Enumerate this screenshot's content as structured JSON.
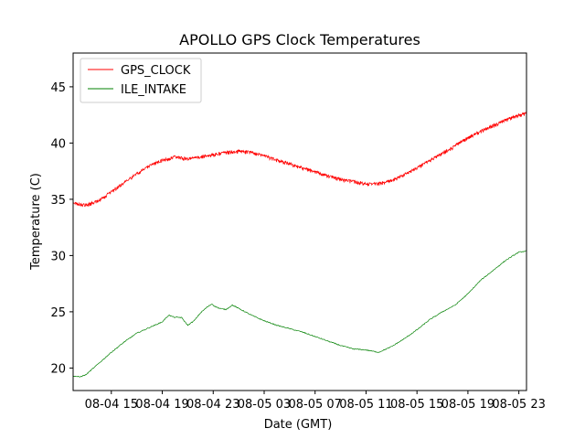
{
  "chart_data": {
    "type": "line",
    "title": "APOLLO GPS Clock Temperatures",
    "xlabel": "Date (GMT)",
    "ylabel": "Temperature (C)",
    "xlim": [
      12.0,
      47.6
    ],
    "ylim": [
      18.0,
      48.0
    ],
    "x_unit": "hours since 08-04 00:00 GMT",
    "x_ticks": [
      {
        "value": 15,
        "label": "08-04 15"
      },
      {
        "value": 19,
        "label": "08-04 19"
      },
      {
        "value": 23,
        "label": "08-04 23"
      },
      {
        "value": 27,
        "label": "08-05 03"
      },
      {
        "value": 31,
        "label": "08-05 07"
      },
      {
        "value": 35,
        "label": "08-05 11"
      },
      {
        "value": 39,
        "label": "08-05 15"
      },
      {
        "value": 43,
        "label": "08-05 19"
      },
      {
        "value": 47,
        "label": "08-05 23"
      }
    ],
    "y_ticks": [
      20,
      25,
      30,
      35,
      40,
      45
    ],
    "legend": {
      "location": "top-left",
      "entries": [
        {
          "label": "GPS_CLOCK",
          "color": "#ff0000"
        },
        {
          "label": "ILE_INTAKE",
          "color": "#008000"
        }
      ]
    },
    "series": [
      {
        "name": "GPS_CLOCK",
        "color": "#ff0000",
        "noise": 0.6,
        "points": [
          [
            12.0,
            34.8
          ],
          [
            13.0,
            34.6
          ],
          [
            14.0,
            35.0
          ],
          [
            15.0,
            35.8
          ],
          [
            16.0,
            36.6
          ],
          [
            17.0,
            37.4
          ],
          [
            18.0,
            38.1
          ],
          [
            19.0,
            38.6
          ],
          [
            20.0,
            38.9
          ],
          [
            21.0,
            38.7
          ],
          [
            22.0,
            38.9
          ],
          [
            23.0,
            39.1
          ],
          [
            24.0,
            39.3
          ],
          [
            25.0,
            39.4
          ],
          [
            26.0,
            39.3
          ],
          [
            27.0,
            39.0
          ],
          [
            28.0,
            38.6
          ],
          [
            29.0,
            38.3
          ],
          [
            30.0,
            37.9
          ],
          [
            31.0,
            37.6
          ],
          [
            32.0,
            37.2
          ],
          [
            33.0,
            36.9
          ],
          [
            34.0,
            36.7
          ],
          [
            35.0,
            36.5
          ],
          [
            36.0,
            36.5
          ],
          [
            37.0,
            36.8
          ],
          [
            38.0,
            37.3
          ],
          [
            39.0,
            37.9
          ],
          [
            40.0,
            38.6
          ],
          [
            41.0,
            39.2
          ],
          [
            42.0,
            39.9
          ],
          [
            43.0,
            40.6
          ],
          [
            44.0,
            41.2
          ],
          [
            45.0,
            41.7
          ],
          [
            46.0,
            42.2
          ],
          [
            47.0,
            42.6
          ],
          [
            47.6,
            42.8
          ]
        ]
      },
      {
        "name": "ILE_INTAKE",
        "color": "#008000",
        "noise": 0.08,
        "points": [
          [
            12.0,
            19.3
          ],
          [
            12.5,
            19.2
          ],
          [
            13.0,
            19.4
          ],
          [
            14.0,
            20.4
          ],
          [
            15.0,
            21.4
          ],
          [
            16.0,
            22.3
          ],
          [
            17.0,
            23.1
          ],
          [
            18.0,
            23.6
          ],
          [
            19.0,
            24.1
          ],
          [
            19.5,
            24.7
          ],
          [
            20.0,
            24.5
          ],
          [
            20.5,
            24.5
          ],
          [
            21.0,
            23.8
          ],
          [
            21.5,
            24.2
          ],
          [
            22.0,
            24.9
          ],
          [
            22.5,
            25.4
          ],
          [
            22.9,
            25.7
          ],
          [
            23.1,
            25.5
          ],
          [
            23.5,
            25.3
          ],
          [
            24.0,
            25.2
          ],
          [
            24.5,
            25.6
          ],
          [
            25.0,
            25.3
          ],
          [
            26.0,
            24.7
          ],
          [
            27.0,
            24.2
          ],
          [
            28.0,
            23.8
          ],
          [
            29.0,
            23.5
          ],
          [
            30.0,
            23.2
          ],
          [
            31.0,
            22.8
          ],
          [
            32.0,
            22.4
          ],
          [
            33.0,
            22.0
          ],
          [
            34.0,
            21.7
          ],
          [
            35.0,
            21.6
          ],
          [
            36.0,
            21.4
          ],
          [
            37.0,
            21.9
          ],
          [
            38.0,
            22.6
          ],
          [
            39.0,
            23.4
          ],
          [
            40.0,
            24.3
          ],
          [
            41.0,
            25.0
          ],
          [
            42.0,
            25.6
          ],
          [
            43.0,
            26.6
          ],
          [
            44.0,
            27.8
          ],
          [
            45.0,
            28.7
          ],
          [
            46.0,
            29.6
          ],
          [
            47.0,
            30.3
          ],
          [
            47.6,
            30.4
          ]
        ]
      }
    ]
  }
}
